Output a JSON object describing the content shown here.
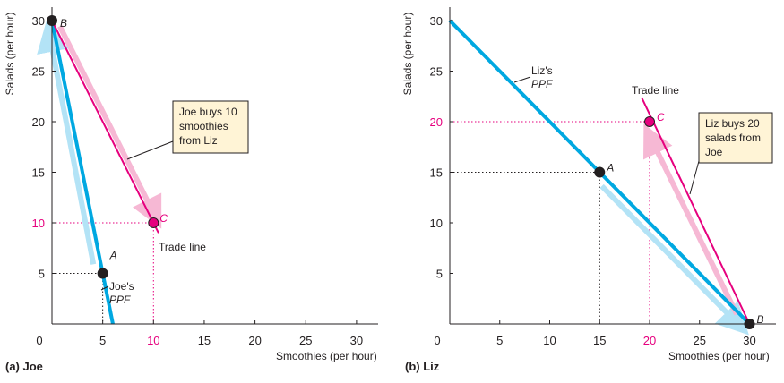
{
  "chart_data": [
    {
      "type": "line",
      "panel_title": "(a) Joe",
      "xlabel": "Smoothies (per hour)",
      "ylabel": "Salads (per hour)",
      "xlim": [
        0,
        32
      ],
      "ylim": [
        0,
        31
      ],
      "xticks": [
        0,
        5,
        10,
        15,
        20,
        25,
        30
      ],
      "yticks": [
        5,
        10,
        15,
        20,
        25,
        30
      ],
      "highlight_xticks": [
        10
      ],
      "highlight_yticks": [
        10
      ],
      "ppf": {
        "x": [
          0,
          6
        ],
        "y": [
          30,
          0
        ],
        "label_line1": "Joe's",
        "label_line2": "PPF",
        "color": "#00a8e1"
      },
      "trade_line": {
        "x": [
          0,
          10.5
        ],
        "y": [
          30,
          9
        ],
        "label": "Trade line",
        "color": "#e6007e"
      },
      "points": [
        {
          "label": "B",
          "x": 0,
          "y": 30,
          "color": "#231f20"
        },
        {
          "label": "A",
          "x": 5,
          "y": 5,
          "color": "#231f20"
        },
        {
          "label": "C",
          "x": 10,
          "y": 10,
          "color": "#e6007e"
        }
      ],
      "callout": {
        "lines": [
          "Joe buys 10",
          "smoothies",
          "from Liz"
        ]
      }
    },
    {
      "type": "line",
      "panel_title": "(b) Liz",
      "xlabel": "Smoothies (per hour)",
      "ylabel": "Salads (per hour)",
      "xlim": [
        0,
        32
      ],
      "ylim": [
        0,
        31
      ],
      "xticks": [
        0,
        5,
        10,
        15,
        20,
        25,
        30
      ],
      "yticks": [
        5,
        10,
        15,
        20,
        25,
        30
      ],
      "highlight_xticks": [
        20
      ],
      "highlight_yticks": [
        20
      ],
      "ppf": {
        "x": [
          0,
          30
        ],
        "y": [
          30,
          0
        ],
        "label_line1": "Liz's",
        "label_line2": "PPF",
        "color": "#00a8e1"
      },
      "trade_line": {
        "x": [
          19.2,
          30
        ],
        "y": [
          22.4,
          0
        ],
        "label": "Trade line",
        "color": "#e6007e"
      },
      "points": [
        {
          "label": "A",
          "x": 15,
          "y": 15,
          "color": "#231f20"
        },
        {
          "label": "C",
          "x": 20,
          "y": 20,
          "color": "#e6007e"
        },
        {
          "label": "B",
          "x": 30,
          "y": 0,
          "color": "#231f20"
        }
      ],
      "callout": {
        "lines": [
          "Liz buys 20",
          "salads from",
          "Joe"
        ]
      }
    }
  ]
}
